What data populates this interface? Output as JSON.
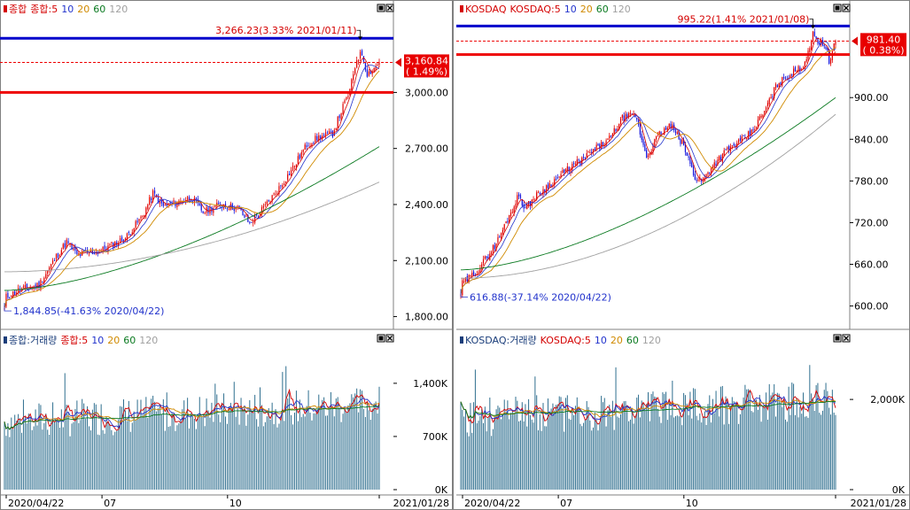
{
  "chart_data": [
    {
      "type": "candlestick",
      "legend": [
        {
          "label": "종합",
          "color": "#d40000"
        },
        {
          "label": "종합:5",
          "color": "#d40000"
        },
        {
          "label": "10",
          "color": "#2233cc"
        },
        {
          "label": "20",
          "color": "#d08a00"
        },
        {
          "label": "60",
          "color": "#0a7a20"
        },
        {
          "label": "120",
          "color": "#a0a0a0"
        }
      ],
      "ylim": [
        1760,
        3400
      ],
      "y_ticks": [
        1800,
        2100,
        2400,
        2700,
        3000
      ],
      "y_tick_labels": [
        "1,800.00",
        "2,100.00",
        "2,400.00",
        "2,700.00",
        "3,000.00"
      ],
      "start": 1845,
      "end": 3160.84,
      "peak": 3266.23,
      "low": 1844.85,
      "waypoints": [
        [
          0,
          1900
        ],
        [
          8,
          1940
        ],
        [
          20,
          1970
        ],
        [
          30,
          2120
        ],
        [
          36,
          2200
        ],
        [
          42,
          2130
        ],
        [
          55,
          2150
        ],
        [
          70,
          2220
        ],
        [
          80,
          2340
        ],
        [
          86,
          2460
        ],
        [
          92,
          2390
        ],
        [
          100,
          2410
        ],
        [
          108,
          2440
        ],
        [
          115,
          2360
        ],
        [
          125,
          2400
        ],
        [
          135,
          2380
        ],
        [
          142,
          2300
        ],
        [
          150,
          2380
        ],
        [
          160,
          2500
        ],
        [
          168,
          2610
        ],
        [
          175,
          2720
        ],
        [
          182,
          2760
        ],
        [
          190,
          2780
        ],
        [
          195,
          2900
        ],
        [
          200,
          3010
        ],
        [
          204,
          3180
        ],
        [
          207,
          3210
        ],
        [
          210,
          3100
        ],
        [
          213,
          3120
        ],
        [
          217,
          3160.84
        ]
      ],
      "ma60_start": 1940,
      "ma60_end": 2710,
      "ma120_start": 2040,
      "ma120_end": 2520,
      "current_value": "3,160.84",
      "current_change": "( 1.49%)",
      "high_label": "3,266.23(3.33% 2021/01/11)",
      "low_label": "1,844.85(-41.63% 2020/04/22)",
      "blue_line": 3290,
      "red_line": 3000,
      "dashed_line": 3160.84
    },
    {
      "type": "bar",
      "legend": [
        {
          "label": "종합:거래량",
          "color": "#1a3d7a"
        },
        {
          "label": "종합:5",
          "color": "#d40000"
        },
        {
          "label": "10",
          "color": "#2233cc"
        },
        {
          "label": "20",
          "color": "#d08a00"
        },
        {
          "label": "60",
          "color": "#0a7a20"
        },
        {
          "label": "120",
          "color": "#a0a0a0"
        }
      ],
      "ylim": [
        0,
        1900
      ],
      "y_ticks": [
        0,
        700,
        1400
      ],
      "y_tick_labels": [
        "0K",
        "700K",
        "1,400K"
      ],
      "base": 900,
      "end_level": 1130,
      "amp": 500,
      "seed": 7
    },
    {
      "type": "candlestick",
      "legend": [
        {
          "label": "KOSDAQ",
          "color": "#d40000"
        },
        {
          "label": "KOSDAQ:5",
          "color": "#d40000"
        },
        {
          "label": "10",
          "color": "#2233cc"
        },
        {
          "label": "20",
          "color": "#d08a00"
        },
        {
          "label": "60",
          "color": "#0a7a20"
        },
        {
          "label": "120",
          "color": "#a0a0a0"
        }
      ],
      "ylim": [
        574,
        1015
      ],
      "y_ticks": [
        600,
        660,
        720,
        780,
        840,
        900
      ],
      "y_tick_labels": [
        "600.00",
        "660.00",
        "720.00",
        "780.00",
        "840.00",
        "900.00"
      ],
      "start": 617,
      "end": 981.4,
      "peak": 995.22,
      "low": 616.88,
      "waypoints": [
        [
          0,
          630
        ],
        [
          10,
          650
        ],
        [
          22,
          690
        ],
        [
          30,
          730
        ],
        [
          36,
          760
        ],
        [
          40,
          740
        ],
        [
          45,
          755
        ],
        [
          55,
          775
        ],
        [
          68,
          800
        ],
        [
          75,
          810
        ],
        [
          80,
          820
        ],
        [
          92,
          840
        ],
        [
          100,
          870
        ],
        [
          108,
          875
        ],
        [
          115,
          815
        ],
        [
          122,
          845
        ],
        [
          130,
          860
        ],
        [
          138,
          830
        ],
        [
          145,
          785
        ],
        [
          150,
          780
        ],
        [
          155,
          800
        ],
        [
          165,
          825
        ],
        [
          172,
          835
        ],
        [
          180,
          850
        ],
        [
          188,
          880
        ],
        [
          196,
          920
        ],
        [
          205,
          935
        ],
        [
          212,
          945
        ],
        [
          218,
          990
        ],
        [
          222,
          980
        ],
        [
          226,
          975
        ],
        [
          228,
          950
        ],
        [
          232,
          981.4
        ]
      ],
      "ma60_start": 652,
      "ma60_end": 900,
      "ma120_start": 640,
      "ma120_end": 876,
      "current_value": "981.40",
      "current_change": "( 0.38%)",
      "high_label": "995.22(1.41% 2021/01/08)",
      "low_label": "616.88(-37.14% 2020/04/22)",
      "blue_line": 1003,
      "red_line": 962,
      "dashed_line": 981.4
    },
    {
      "type": "bar",
      "legend": [
        {
          "label": "KOSDAQ:거래량",
          "color": "#1a3d7a"
        },
        {
          "label": "KOSDAQ:5",
          "color": "#d40000"
        },
        {
          "label": "10",
          "color": "#2233cc"
        },
        {
          "label": "20",
          "color": "#d08a00"
        },
        {
          "label": "60",
          "color": "#0a7a20"
        },
        {
          "label": "120",
          "color": "#a0a0a0"
        }
      ],
      "ylim": [
        0,
        3200
      ],
      "y_ticks": [
        0,
        2000
      ],
      "y_tick_labels": [
        "0K",
        "2,000K"
      ],
      "base": 1600,
      "end_level": 2000,
      "amp": 900,
      "seed": 23
    }
  ],
  "x_axis_labels": {
    "left": [
      "2020/04/22",
      "07",
      "10",
      "2021/01/28"
    ],
    "right": [
      "2020/04/22",
      "07",
      "10",
      "2021/01/28"
    ]
  },
  "colors": {
    "up": "#e00000",
    "down": "#1111dd",
    "blue_line": "#0000cc",
    "red_line": "#ee0000"
  },
  "icons": [
    "maximize-icon",
    "close-icon"
  ]
}
